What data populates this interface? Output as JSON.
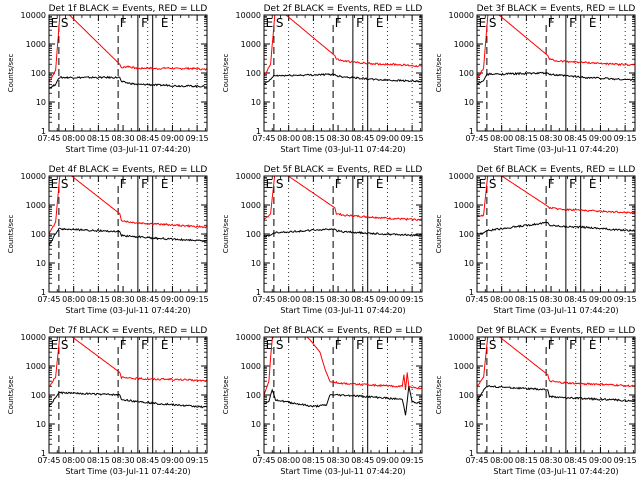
{
  "page": {
    "x_title": "Start Time (03-Jul-11 07:44:20)",
    "y_title": "Counts/sec",
    "x_tick_labels": [
      "07:45",
      "08:00",
      "08:15",
      "08:30",
      "08:45",
      "09:00",
      "09:15"
    ],
    "y_tick_labels": [
      "1",
      "10",
      "100",
      "1000",
      "10000"
    ],
    "interval_labels": [
      "E",
      "S",
      "F",
      "F",
      "E"
    ]
  },
  "colors": {
    "events": "#000000",
    "lld": "#ff0000"
  },
  "chart_data": [
    {
      "type": "line",
      "title": "Det 1f BLACK = Events, RED = LLD",
      "xlabel": "Start Time (03-Jul-11 07:44:20)",
      "ylabel": "Counts/sec",
      "x_range_min": [
        0,
        96
      ],
      "yscale": "log",
      "ylim": [
        1,
        10000
      ],
      "x_ticks_min": [
        0,
        15,
        30,
        45,
        60,
        75,
        90
      ],
      "dashed_lines_min": [
        6,
        42
      ],
      "dotted_lines_min": [
        15,
        30,
        60,
        75,
        90
      ],
      "solid_lines_min": [
        54,
        63
      ],
      "series": [
        {
          "key": "lld",
          "x_min": [
            0,
            4,
            7,
            43,
            44,
            48,
            54,
            60,
            66,
            72,
            78,
            84,
            90,
            96
          ],
          "values": [
            50,
            120,
            20000,
            200,
            150,
            170,
            140,
            150,
            140,
            150,
            140,
            145,
            140,
            130
          ]
        },
        {
          "key": "events",
          "x_min": [
            0,
            4,
            6,
            43,
            44,
            48,
            54,
            60,
            66,
            72,
            78,
            84,
            90,
            96
          ],
          "values": [
            30,
            40,
            70,
            70,
            50,
            45,
            40,
            40,
            38,
            38,
            36,
            36,
            35,
            34
          ]
        }
      ]
    },
    {
      "type": "line",
      "title": "Det 2f BLACK = Events, RED = LLD",
      "xlabel": "Start Time (03-Jul-11 07:44:20)",
      "ylabel": "Counts/sec",
      "x_range_min": [
        0,
        96
      ],
      "yscale": "log",
      "ylim": [
        1,
        10000
      ],
      "x_ticks_min": [
        0,
        15,
        30,
        45,
        60,
        75,
        90
      ],
      "dashed_lines_min": [
        6,
        42
      ],
      "dotted_lines_min": [
        15,
        30,
        60,
        75,
        90
      ],
      "solid_lines_min": [
        54,
        63
      ],
      "series": [
        {
          "key": "lld",
          "x_min": [
            0,
            4,
            7,
            43,
            44,
            48,
            54,
            60,
            66,
            72,
            78,
            84,
            90,
            96
          ],
          "values": [
            80,
            200,
            20000,
            400,
            300,
            260,
            240,
            220,
            210,
            200,
            200,
            190,
            180,
            170
          ]
        },
        {
          "key": "events",
          "x_min": [
            0,
            4,
            6,
            43,
            44,
            48,
            54,
            60,
            66,
            72,
            78,
            84,
            90,
            96
          ],
          "values": [
            40,
            60,
            80,
            90,
            80,
            75,
            70,
            65,
            60,
            58,
            56,
            55,
            52,
            50
          ]
        }
      ]
    },
    {
      "type": "line",
      "title": "Det 3f BLACK = Events, RED = LLD",
      "xlabel": "Start Time (03-Jul-11 07:44:20)",
      "ylabel": "Counts/sec",
      "x_range_min": [
        0,
        96
      ],
      "yscale": "log",
      "ylim": [
        1,
        10000
      ],
      "x_ticks_min": [
        0,
        15,
        30,
        45,
        60,
        75,
        90
      ],
      "dashed_lines_min": [
        6,
        42
      ],
      "dotted_lines_min": [
        15,
        30,
        60,
        75,
        90
      ],
      "solid_lines_min": [
        54,
        63
      ],
      "series": [
        {
          "key": "lld",
          "x_min": [
            0,
            4,
            7,
            43,
            44,
            48,
            54,
            60,
            66,
            72,
            78,
            84,
            90,
            96
          ],
          "values": [
            60,
            150,
            20000,
            400,
            300,
            260,
            250,
            240,
            230,
            220,
            210,
            200,
            195,
            190
          ]
        },
        {
          "key": "events",
          "x_min": [
            0,
            4,
            6,
            43,
            44,
            48,
            54,
            60,
            66,
            72,
            78,
            84,
            90,
            96
          ],
          "values": [
            40,
            55,
            90,
            100,
            90,
            85,
            80,
            75,
            70,
            68,
            65,
            62,
            60,
            58
          ]
        }
      ]
    },
    {
      "type": "line",
      "title": "Det 4f BLACK = Events, RED = LLD",
      "xlabel": "Start Time (03-Jul-11 07:44:20)",
      "ylabel": "Counts/sec",
      "x_range_min": [
        0,
        96
      ],
      "yscale": "log",
      "ylim": [
        1,
        10000
      ],
      "x_ticks_min": [
        0,
        15,
        30,
        45,
        60,
        75,
        90
      ],
      "dashed_lines_min": [
        6,
        42
      ],
      "dotted_lines_min": [
        15,
        30,
        60,
        75,
        90
      ],
      "solid_lines_min": [
        54,
        63
      ],
      "series": [
        {
          "key": "lld",
          "x_min": [
            0,
            4,
            7,
            43,
            44,
            48,
            54,
            60,
            66,
            72,
            78,
            84,
            90,
            96
          ],
          "values": [
            100,
            250,
            20000,
            500,
            300,
            260,
            240,
            230,
            220,
            210,
            200,
            190,
            180,
            170
          ]
        },
        {
          "key": "events",
          "x_min": [
            0,
            4,
            6,
            43,
            44,
            48,
            54,
            60,
            66,
            72,
            78,
            84,
            90,
            96
          ],
          "values": [
            40,
            100,
            150,
            120,
            90,
            85,
            80,
            75,
            70,
            68,
            65,
            62,
            60,
            55
          ]
        }
      ]
    },
    {
      "type": "line",
      "title": "Det 5f BLACK = Events, RED = LLD",
      "xlabel": "Start Time (03-Jul-11 07:44:20)",
      "ylabel": "Counts/sec",
      "x_range_min": [
        0,
        96
      ],
      "yscale": "log",
      "ylim": [
        1,
        10000
      ],
      "x_ticks_min": [
        0,
        15,
        30,
        45,
        60,
        75,
        90
      ],
      "dashed_lines_min": [
        6,
        42
      ],
      "dotted_lines_min": [
        15,
        30,
        60,
        75,
        90
      ],
      "solid_lines_min": [
        54,
        63
      ],
      "series": [
        {
          "key": "lld",
          "x_min": [
            0,
            4,
            7,
            43,
            44,
            48,
            54,
            60,
            66,
            72,
            78,
            84,
            90,
            96
          ],
          "values": [
            300,
            500,
            20000,
            800,
            500,
            450,
            420,
            400,
            380,
            360,
            340,
            330,
            320,
            310
          ]
        },
        {
          "key": "events",
          "x_min": [
            0,
            4,
            6,
            43,
            44,
            48,
            54,
            60,
            66,
            72,
            78,
            84,
            90,
            96
          ],
          "values": [
            80,
            90,
            110,
            150,
            130,
            120,
            115,
            110,
            105,
            100,
            98,
            95,
            92,
            90
          ]
        }
      ]
    },
    {
      "type": "line",
      "title": "Det 6f BLACK = Events, RED = LLD",
      "xlabel": "Start Time (03-Jul-11 07:44:20)",
      "ylabel": "Counts/sec",
      "x_range_min": [
        0,
        96
      ],
      "yscale": "log",
      "ylim": [
        1,
        10000
      ],
      "x_ticks_min": [
        0,
        15,
        30,
        45,
        60,
        75,
        90
      ],
      "dashed_lines_min": [
        6,
        42
      ],
      "dotted_lines_min": [
        15,
        30,
        60,
        75,
        90
      ],
      "solid_lines_min": [
        54,
        63
      ],
      "series": [
        {
          "key": "lld",
          "x_min": [
            0,
            4,
            7,
            43,
            44,
            48,
            54,
            60,
            66,
            72,
            78,
            84,
            90,
            96
          ],
          "values": [
            400,
            450,
            20000,
            900,
            800,
            750,
            700,
            680,
            650,
            620,
            600,
            580,
            560,
            540
          ]
        },
        {
          "key": "events",
          "x_min": [
            0,
            4,
            6,
            43,
            44,
            48,
            54,
            60,
            66,
            72,
            78,
            84,
            90,
            96
          ],
          "values": [
            100,
            110,
            130,
            250,
            200,
            190,
            180,
            175,
            170,
            160,
            150,
            140,
            135,
            130
          ]
        }
      ]
    },
    {
      "type": "line",
      "title": "Det 7f BLACK = Events, RED = LLD",
      "xlabel": "Start Time (03-Jul-11 07:44:20)",
      "ylabel": "Counts/sec",
      "x_range_min": [
        0,
        96
      ],
      "yscale": "log",
      "ylim": [
        1,
        10000
      ],
      "x_ticks_min": [
        0,
        15,
        30,
        45,
        60,
        75,
        90
      ],
      "dashed_lines_min": [
        6,
        42
      ],
      "dotted_lines_min": [
        15,
        30,
        60,
        75,
        90
      ],
      "solid_lines_min": [
        54,
        63
      ],
      "series": [
        {
          "key": "lld",
          "x_min": [
            0,
            4,
            7,
            43,
            44,
            48,
            54,
            60,
            66,
            72,
            78,
            84,
            90,
            96
          ],
          "values": [
            200,
            400,
            20000,
            600,
            400,
            380,
            370,
            360,
            350,
            350,
            340,
            330,
            320,
            310
          ]
        },
        {
          "key": "events",
          "x_min": [
            0,
            4,
            6,
            43,
            44,
            48,
            54,
            60,
            66,
            72,
            78,
            84,
            90,
            96
          ],
          "values": [
            40,
            80,
            120,
            100,
            70,
            65,
            60,
            55,
            50,
            48,
            45,
            42,
            40,
            38
          ]
        }
      ]
    },
    {
      "type": "line",
      "title": "Det 8f BLACK = Events, RED = LLD",
      "xlabel": "Start Time (03-Jul-11 07:44:20)",
      "ylabel": "Counts/sec",
      "x_range_min": [
        0,
        96
      ],
      "yscale": "log",
      "ylim": [
        1,
        10000
      ],
      "x_ticks_min": [
        0,
        15,
        30,
        45,
        60,
        75,
        90
      ],
      "dashed_lines_min": [
        6,
        42
      ],
      "dotted_lines_min": [
        15,
        30,
        60,
        75,
        90
      ],
      "solid_lines_min": [
        54,
        63
      ],
      "series": [
        {
          "key": "lld",
          "x_min": [
            0,
            3,
            4,
            5,
            6,
            7,
            20,
            28,
            34,
            37,
            40,
            45,
            54,
            60,
            66,
            72,
            78,
            84,
            85,
            86,
            87,
            88,
            90,
            96
          ],
          "values": [
            100,
            300,
            2000,
            8000,
            12000,
            20000,
            20000,
            8000,
            3000,
            800,
            300,
            260,
            240,
            230,
            220,
            210,
            200,
            200,
            500,
            150,
            600,
            200,
            180,
            170
          ]
        },
        {
          "key": "events",
          "x_min": [
            0,
            3,
            4,
            5,
            7,
            12,
            20,
            30,
            38,
            40,
            45,
            54,
            60,
            66,
            72,
            78,
            84,
            85,
            86,
            87,
            88,
            90,
            96
          ],
          "values": [
            50,
            60,
            100,
            150,
            70,
            60,
            50,
            40,
            45,
            100,
            100,
            95,
            90,
            85,
            80,
            75,
            70,
            40,
            20,
            60,
            200,
            60,
            50
          ]
        }
      ]
    },
    {
      "type": "line",
      "title": "Det 9f BLACK = Events, RED = LLD",
      "xlabel": "Start Time (03-Jul-11 07:44:20)",
      "ylabel": "Counts/sec",
      "x_range_min": [
        0,
        96
      ],
      "yscale": "log",
      "ylim": [
        1,
        10000
      ],
      "x_ticks_min": [
        0,
        15,
        30,
        45,
        60,
        75,
        90
      ],
      "dashed_lines_min": [
        6,
        42
      ],
      "dotted_lines_min": [
        15,
        30,
        60,
        75,
        90
      ],
      "solid_lines_min": [
        54,
        63
      ],
      "series": [
        {
          "key": "lld",
          "x_min": [
            0,
            4,
            7,
            43,
            44,
            48,
            54,
            60,
            66,
            72,
            78,
            84,
            90,
            96
          ],
          "values": [
            200,
            400,
            20000,
            500,
            300,
            280,
            260,
            250,
            240,
            240,
            230,
            220,
            210,
            200
          ]
        },
        {
          "key": "events",
          "x_min": [
            0,
            4,
            6,
            43,
            44,
            48,
            54,
            60,
            66,
            72,
            78,
            84,
            90,
            96
          ],
          "values": [
            60,
            150,
            200,
            150,
            90,
            85,
            80,
            78,
            75,
            72,
            70,
            68,
            65,
            62
          ]
        }
      ]
    }
  ]
}
